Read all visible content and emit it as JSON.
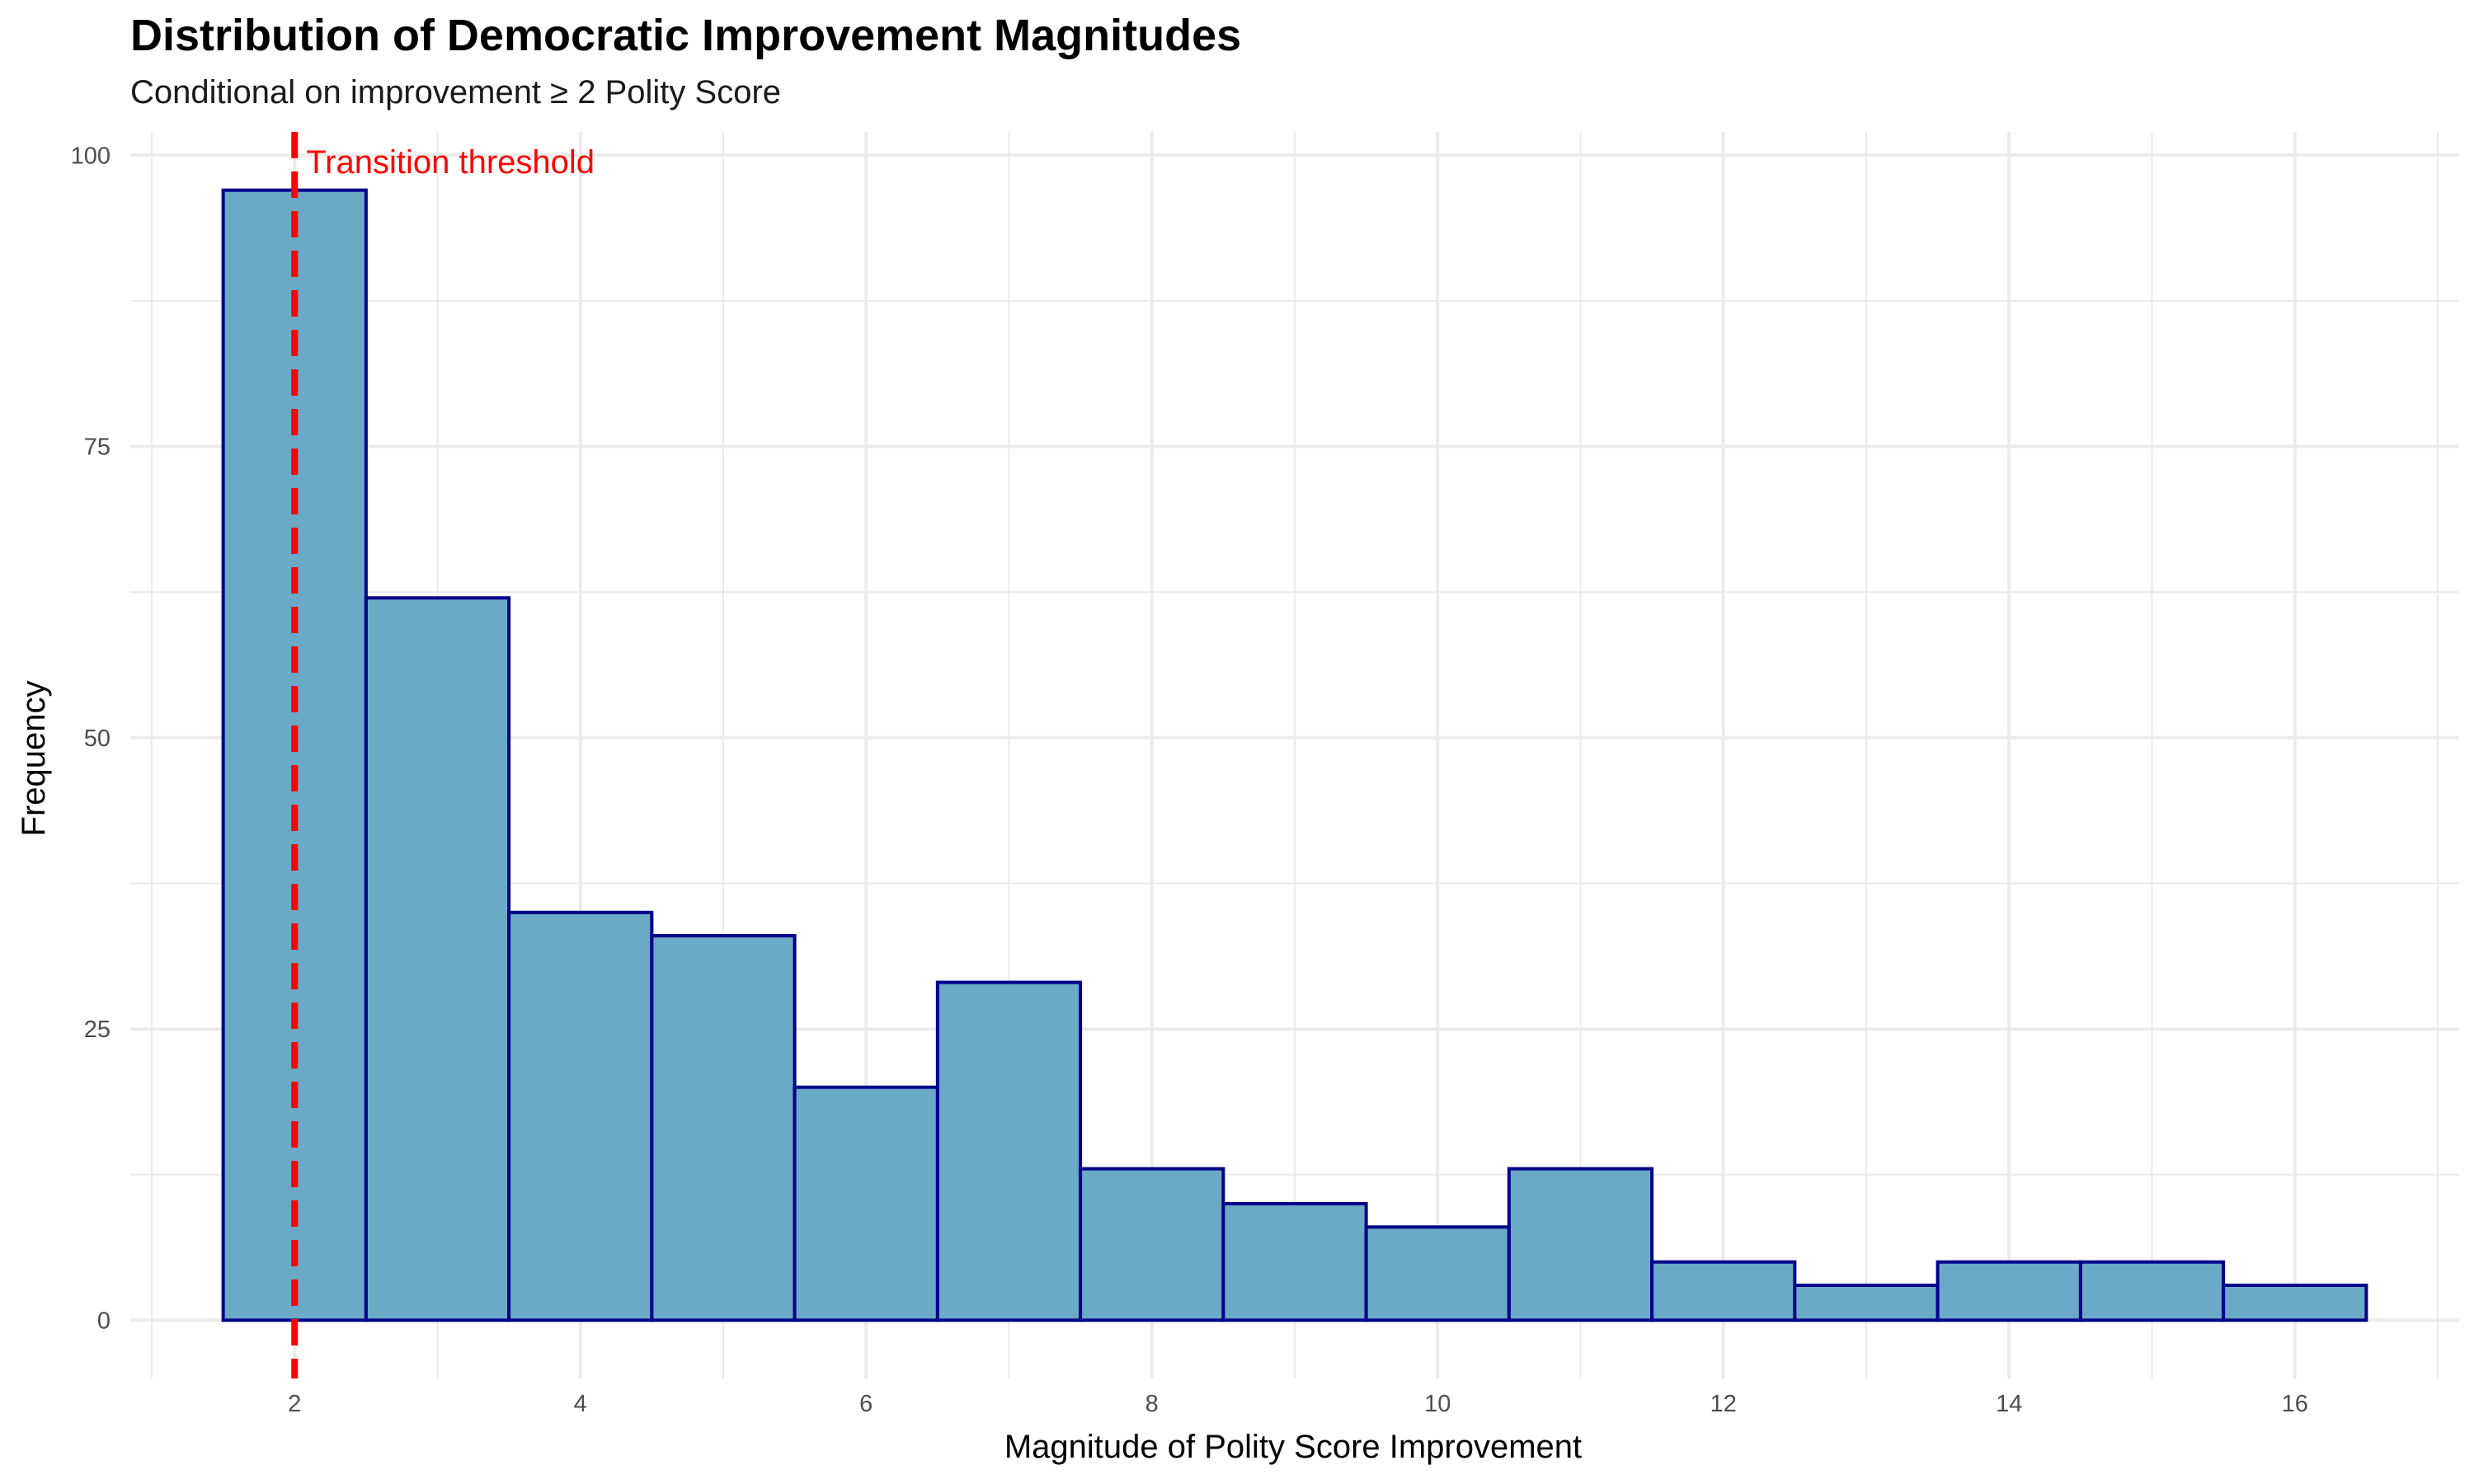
{
  "chart_data": {
    "type": "bar",
    "title": "Distribution of Democratic Improvement Magnitudes",
    "subtitle": "Conditional on improvement ≥ 2 Polity Score",
    "xlabel": "Magnitude of Polity Score Improvement",
    "ylabel": "Frequency",
    "bin_width": 1,
    "bins": [
      {
        "center": 2,
        "count": 97
      },
      {
        "center": 3,
        "count": 62
      },
      {
        "center": 4,
        "count": 35
      },
      {
        "center": 5,
        "count": 33
      },
      {
        "center": 6,
        "count": 20
      },
      {
        "center": 7,
        "count": 29
      },
      {
        "center": 8,
        "count": 13
      },
      {
        "center": 9,
        "count": 10
      },
      {
        "center": 10,
        "count": 8
      },
      {
        "center": 11,
        "count": 13
      },
      {
        "center": 12,
        "count": 5
      },
      {
        "center": 13,
        "count": 3
      },
      {
        "center": 14,
        "count": 5
      },
      {
        "center": 15,
        "count": 5
      },
      {
        "center": 16,
        "count": 3
      }
    ],
    "xlim": [
      0.85,
      17.15
    ],
    "ylim": [
      -5,
      102
    ],
    "x_ticks": [
      "2",
      "4",
      "6",
      "8",
      "10",
      "12",
      "14",
      "16"
    ],
    "y_ticks": [
      "0",
      "25",
      "50",
      "75",
      "100"
    ],
    "x_tick_values": [
      2,
      4,
      6,
      8,
      10,
      12,
      14,
      16
    ],
    "y_tick_values": [
      0,
      25,
      50,
      75,
      100
    ],
    "grid": true,
    "threshold": {
      "x": 2,
      "label": "Transition threshold",
      "color": "#ff0000",
      "style": "dashed"
    },
    "colors": {
      "bar_fill": "#6aaac6",
      "bar_edge": "#00008b",
      "grid": "#ebebeb"
    }
  }
}
